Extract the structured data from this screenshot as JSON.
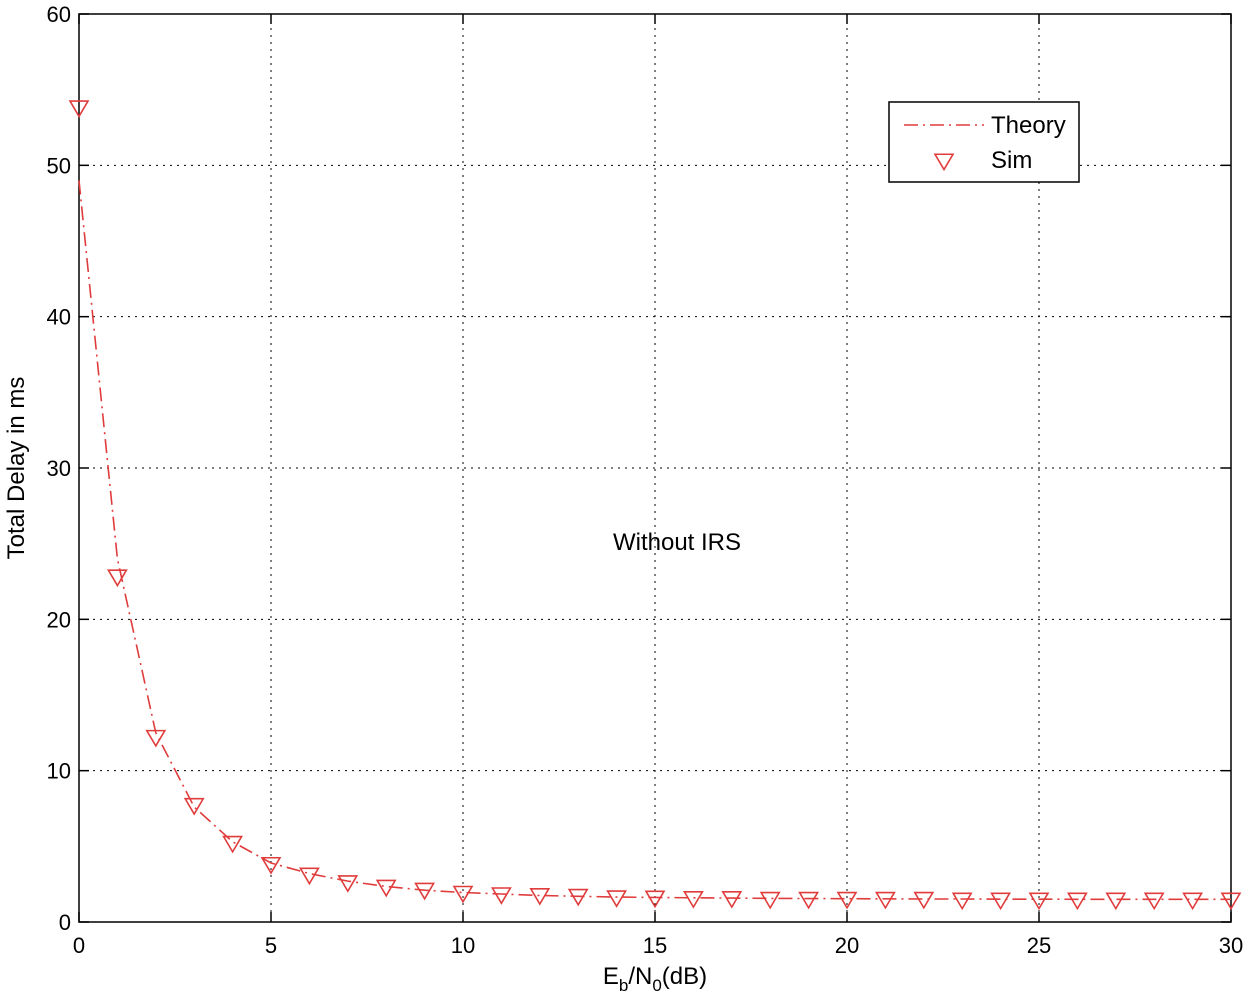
{
  "chart_data": {
    "type": "line",
    "xlim": [
      0,
      30
    ],
    "ylim": [
      0,
      60
    ],
    "x_ticks": [
      0,
      5,
      10,
      15,
      20,
      25,
      30
    ],
    "y_ticks": [
      0,
      10,
      20,
      30,
      40,
      50,
      60
    ],
    "x_tick_labels": [
      "0",
      "5",
      "10",
      "15",
      "20",
      "25",
      "30"
    ],
    "y_tick_labels": [
      "0",
      "10",
      "20",
      "30",
      "40",
      "50",
      "60"
    ],
    "xlabel": {
      "main": "E",
      "sub1": "b",
      "mid": "/N",
      "sub2": "0",
      "end": "(dB)"
    },
    "ylabel": "Total Delay in ms",
    "grid": true,
    "legend_position": "top-right",
    "annotation": "Without IRS",
    "series": [
      {
        "name": "Theory",
        "style": "dash-dot",
        "color": "#e03c3c",
        "x": [
          0,
          1,
          2,
          3,
          4,
          5,
          6,
          7,
          8,
          9,
          10,
          11,
          12,
          13,
          14,
          15,
          16,
          17,
          18,
          19,
          20,
          21,
          22,
          23,
          24,
          25,
          26,
          27,
          28,
          29,
          30
        ],
        "y": [
          49,
          24,
          12.5,
          7.6,
          5.3,
          3.9,
          3.2,
          2.7,
          2.35,
          2.1,
          1.95,
          1.85,
          1.75,
          1.7,
          1.65,
          1.62,
          1.6,
          1.58,
          1.56,
          1.55,
          1.54,
          1.53,
          1.52,
          1.52,
          1.51,
          1.51,
          1.5,
          1.5,
          1.5,
          1.5,
          1.5
        ]
      },
      {
        "name": "Sim",
        "style": "marker-triangle-down",
        "color": "#e03c3c",
        "x": [
          0,
          1,
          2,
          3,
          4,
          5,
          6,
          7,
          8,
          9,
          10,
          11,
          12,
          13,
          14,
          15,
          16,
          17,
          18,
          19,
          20,
          21,
          22,
          23,
          24,
          25,
          26,
          27,
          28,
          29,
          30
        ],
        "y": [
          53.8,
          22.8,
          12.2,
          7.7,
          5.2,
          3.8,
          3.1,
          2.6,
          2.3,
          2.1,
          1.9,
          1.8,
          1.75,
          1.7,
          1.6,
          1.58,
          1.55,
          1.55,
          1.5,
          1.5,
          1.5,
          1.5,
          1.5,
          1.45,
          1.45,
          1.45,
          1.45,
          1.45,
          1.45,
          1.45,
          1.45
        ]
      }
    ]
  }
}
